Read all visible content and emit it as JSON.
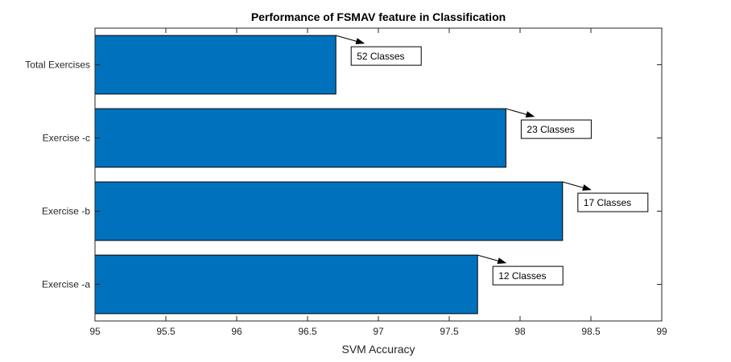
{
  "chart_data": {
    "type": "bar",
    "orientation": "horizontal",
    "title": "Performance of FSMAV feature in Classification",
    "xlabel": "SVM Accuracy",
    "ylabel": "",
    "xlim": [
      95,
      99
    ],
    "xticks": [
      "95",
      "95.5",
      "96",
      "96.5",
      "97",
      "97.5",
      "98",
      "98.5",
      "99"
    ],
    "categories": [
      "Exercise -a",
      "Exercise -b",
      "Exercise -c",
      "Total Exercises"
    ],
    "values": [
      97.7,
      98.3,
      97.9,
      96.7
    ],
    "annotations": [
      "12 Classes",
      "17 Classes",
      "23 Classes",
      "52 Classes"
    ],
    "grid": false,
    "bar_color": "#0072bd"
  }
}
